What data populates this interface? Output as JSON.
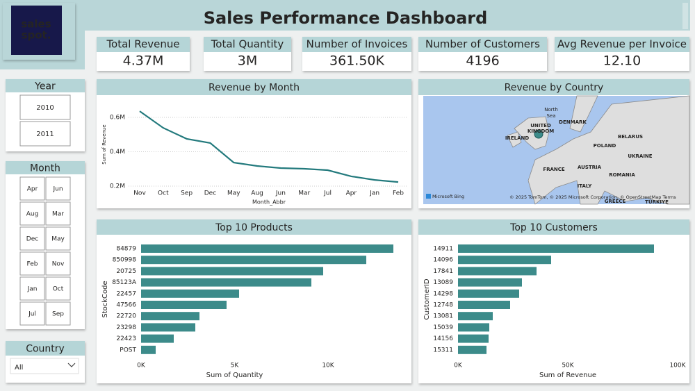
{
  "header": {
    "logo": [
      "sales",
      "spot."
    ],
    "title": "Sales Performance Dashboard"
  },
  "kpis": [
    {
      "label": "Total Revenue",
      "value": "4.37M"
    },
    {
      "label": "Total Quantity",
      "value": "3M"
    },
    {
      "label": "Number of Invoices",
      "value": "361.50K"
    },
    {
      "label": "Number of Customers",
      "value": "4196"
    },
    {
      "label": "Avg Revenue per Invoice",
      "value": "12.10"
    }
  ],
  "slicers": {
    "year": {
      "title": "Year",
      "options": [
        "2010",
        "2011"
      ]
    },
    "month": {
      "title": "Month",
      "options": [
        "Apr",
        "Jun",
        "Aug",
        "Mar",
        "Dec",
        "May",
        "Feb",
        "Nov",
        "Jan",
        "Oct",
        "Jul",
        "Sep"
      ]
    },
    "country": {
      "title": "Country",
      "selected": "All"
    }
  },
  "chart_data": [
    {
      "type": "line",
      "title": "Revenue by Month",
      "x_label": "Month_Abbr",
      "y_label": "Sum of Revenue",
      "color": "#237a7d",
      "categories": [
        "Nov",
        "Oct",
        "Sep",
        "Dec",
        "May",
        "Aug",
        "Jun",
        "Mar",
        "Jul",
        "Apr",
        "Jan",
        "Feb"
      ],
      "values": [
        636000,
        539000,
        475000,
        451000,
        337000,
        317000,
        305000,
        301000,
        293000,
        257000,
        236000,
        224000
      ],
      "ylim": [
        200000,
        680000
      ],
      "yticks": [
        {
          "value": 200000,
          "label": "0.2M"
        },
        {
          "value": 400000,
          "label": "0.4M"
        },
        {
          "value": 600000,
          "label": "0.6M"
        }
      ],
      "grid": true
    },
    {
      "type": "map",
      "title": "Revenue by Country",
      "labels": [
        "North",
        "Sea",
        "UNITED",
        "KINGDOM",
        "IRELAND",
        "DENMARK",
        "BELARUS",
        "POLAND",
        "UKRAINE",
        "FRANCE",
        "AUSTRIA",
        "ROMANIA",
        "ITALY",
        "GREECE",
        "TÜRKIYE"
      ],
      "provider": "Microsoft Bing",
      "attribution": "© 2025 TomTom, © 2025 Microsoft Corporation, © OpenStreetMap  Terms"
    },
    {
      "type": "bar",
      "orientation": "horizontal",
      "title": "Top 10 Products",
      "x_label": "Sum of Quantity",
      "y_label": "StockCode",
      "color": "#3c8b8a",
      "categories": [
        "84879",
        "850998",
        "20725",
        "85123A",
        "22457",
        "47566",
        "22720",
        "23298",
        "22423",
        "POST"
      ],
      "values": [
        13494,
        12045,
        9740,
        9108,
        5242,
        4572,
        3123,
        2900,
        1747,
        781
      ],
      "xlim": [
        0,
        14000
      ],
      "xticks": [
        {
          "value": 0,
          "label": "0K"
        },
        {
          "value": 5000,
          "label": "5K"
        },
        {
          "value": 10000,
          "label": "10K"
        }
      ]
    },
    {
      "type": "bar",
      "orientation": "horizontal",
      "title": "Top 10 Customers",
      "x_label": "Sum of Revenue",
      "y_label": "CustomerID",
      "color": "#3c8b8a",
      "categories": [
        "14911",
        "14096",
        "17841",
        "13089",
        "14298",
        "12748",
        "13081",
        "15039",
        "14156",
        "15311"
      ],
      "values": [
        89241,
        42405,
        35759,
        29114,
        27848,
        23734,
        15823,
        14241,
        13924,
        12975
      ],
      "xlim": [
        0,
        100000
      ],
      "xticks": [
        {
          "value": 0,
          "label": "0K"
        },
        {
          "value": 50000,
          "label": "50K"
        },
        {
          "value": 100000,
          "label": "100K"
        }
      ]
    }
  ]
}
